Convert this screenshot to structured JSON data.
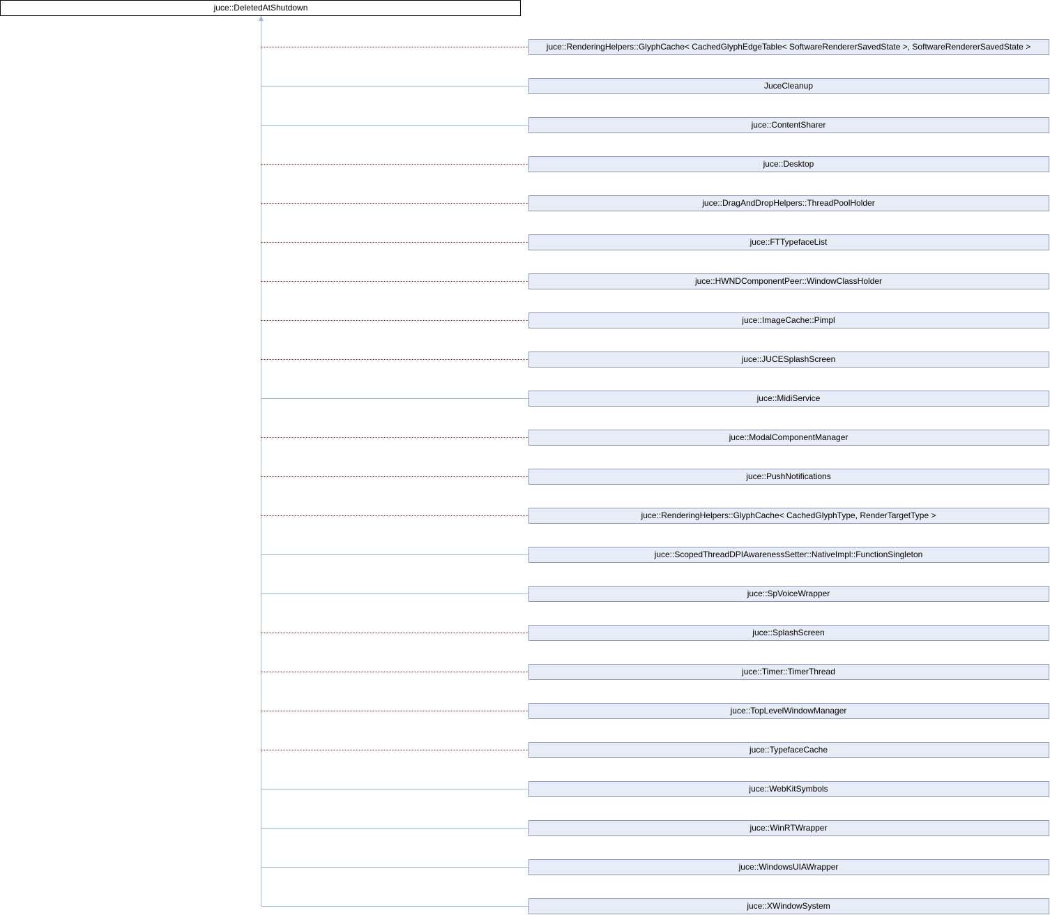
{
  "root": {
    "label": "juce::DeletedAtShutdown"
  },
  "children": [
    {
      "label": "juce::RenderingHelpers::GlyphCache< CachedGlyphEdgeTable< SoftwareRendererSavedState >, SoftwareRendererSavedState >",
      "edge_color": "#8b1a1a",
      "edge_dashed": true
    },
    {
      "label": "JuceCleanup",
      "edge_color": "#9cb8d6",
      "edge_dashed": false
    },
    {
      "label": "juce::ContentSharer",
      "edge_color": "#9cb8d6",
      "edge_dashed": false
    },
    {
      "label": "juce::Desktop",
      "edge_color": "#8b1a1a",
      "edge_dashed": true
    },
    {
      "label": "juce::DragAndDropHelpers::ThreadPoolHolder",
      "edge_color": "#8b1a1a",
      "edge_dashed": true
    },
    {
      "label": "juce::FTTypefaceList",
      "edge_color": "#8b1a1a",
      "edge_dashed": true
    },
    {
      "label": "juce::HWNDComponentPeer::WindowClassHolder",
      "edge_color": "#8b1a1a",
      "edge_dashed": true
    },
    {
      "label": "juce::ImageCache::Pimpl",
      "edge_color": "#8b1a1a",
      "edge_dashed": true
    },
    {
      "label": "juce::JUCESplashScreen",
      "edge_color": "#8b1a1a",
      "edge_dashed": true
    },
    {
      "label": "juce::MidiService",
      "edge_color": "#9cb8d6",
      "edge_dashed": false
    },
    {
      "label": "juce::ModalComponentManager",
      "edge_color": "#8b1a1a",
      "edge_dashed": true
    },
    {
      "label": "juce::PushNotifications",
      "edge_color": "#8b1a1a",
      "edge_dashed": true
    },
    {
      "label": "juce::RenderingHelpers::GlyphCache< CachedGlyphType, RenderTargetType >",
      "edge_color": "#8b1a1a",
      "edge_dashed": true
    },
    {
      "label": "juce::ScopedThreadDPIAwarenessSetter::NativeImpl::FunctionSingleton",
      "edge_color": "#9cb8d6",
      "edge_dashed": false
    },
    {
      "label": "juce::SpVoiceWrapper",
      "edge_color": "#9cb8d6",
      "edge_dashed": false
    },
    {
      "label": "juce::SplashScreen",
      "edge_color": "#8b1a1a",
      "edge_dashed": true
    },
    {
      "label": "juce::Timer::TimerThread",
      "edge_color": "#8b1a1a",
      "edge_dashed": true
    },
    {
      "label": "juce::TopLevelWindowManager",
      "edge_color": "#8b1a1a",
      "edge_dashed": true
    },
    {
      "label": "juce::TypefaceCache",
      "edge_color": "#8b1a1a",
      "edge_dashed": true
    },
    {
      "label": "juce::WebKitSymbols",
      "edge_color": "#9cb8d6",
      "edge_dashed": false
    },
    {
      "label": "juce::WinRTWrapper",
      "edge_color": "#9cb8d6",
      "edge_dashed": false
    },
    {
      "label": "juce::WindowsUIAWrapper",
      "edge_color": "#9cb8d6",
      "edge_dashed": false
    },
    {
      "label": "juce::XWindowSystem",
      "edge_color": "#9cb8d6",
      "edge_dashed": false
    }
  ]
}
